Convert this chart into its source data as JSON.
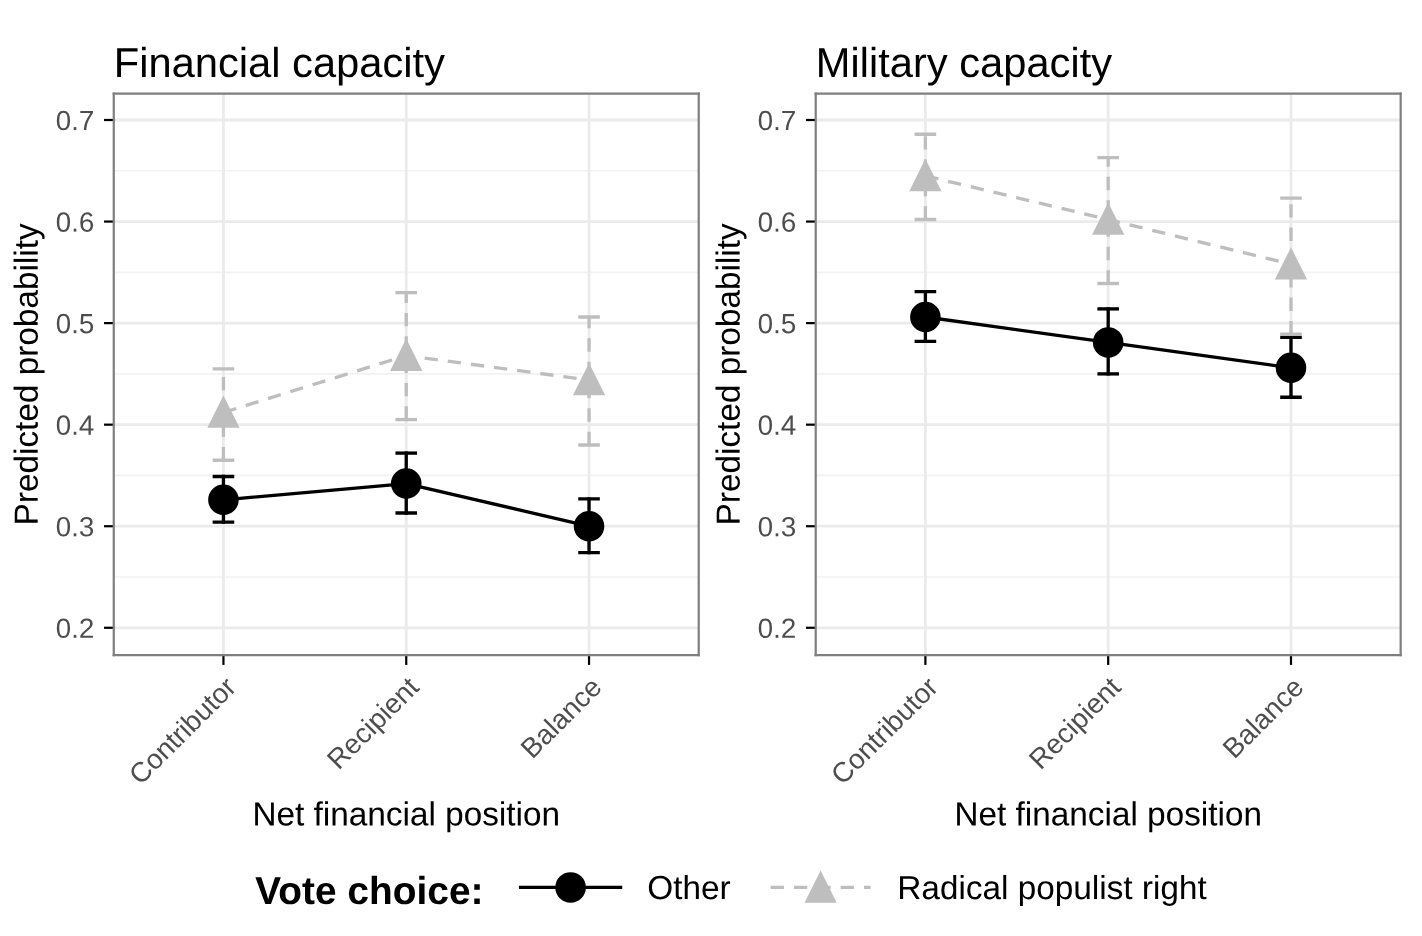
{
  "chart_data": [
    {
      "type": "line",
      "title": "Financial capacity",
      "xlabel": "Net financial position",
      "ylabel": "Predicted probability",
      "categories": [
        "Contributor",
        "Recipient",
        "Balance"
      ],
      "ylim": [
        0.173,
        0.726
      ],
      "yticks": [
        0.2,
        0.3,
        0.4,
        0.5,
        0.6,
        0.7
      ],
      "grid": true,
      "legend": "bottom",
      "legend_title": "Vote choice:",
      "series": [
        {
          "name": "Other",
          "color": "#000000",
          "marker": "circle",
          "line_style": "solid",
          "values": [
            0.326,
            0.342,
            0.3
          ],
          "errors": [
            [
              0.304,
              0.349
            ],
            [
              0.313,
              0.372
            ],
            [
              0.274,
              0.327
            ]
          ]
        },
        {
          "name": "Radical populist right",
          "color": "#bebebe",
          "marker": "triangle",
          "line_style": "dashed",
          "values": [
            0.412,
            0.468,
            0.444
          ],
          "errors": [
            [
              0.365,
              0.455
            ],
            [
              0.405,
              0.53
            ],
            [
              0.38,
              0.506
            ]
          ]
        }
      ]
    },
    {
      "type": "line",
      "title": "Military capacity",
      "xlabel": "Net financial position",
      "ylabel": "Predicted probability",
      "categories": [
        "Contributor",
        "Recipient",
        "Balance"
      ],
      "ylim": [
        0.173,
        0.726
      ],
      "yticks": [
        0.2,
        0.3,
        0.4,
        0.5,
        0.6,
        0.7
      ],
      "grid": true,
      "series": [
        {
          "color": "#000000",
          "marker": "circle",
          "line_style": "solid",
          "values": [
            0.506,
            0.481,
            0.456
          ],
          "errors": [
            [
              0.482,
              0.531
            ],
            [
              0.45,
              0.514
            ],
            [
              0.427,
              0.486
            ]
          ]
        },
        {
          "color": "#bebebe",
          "marker": "triangle",
          "line_style": "dashed",
          "values": [
            0.645,
            0.602,
            0.558
          ],
          "errors": [
            [
              0.602,
              0.686
            ],
            [
              0.539,
              0.663
            ],
            [
              0.489,
              0.623
            ]
          ]
        }
      ]
    }
  ]
}
